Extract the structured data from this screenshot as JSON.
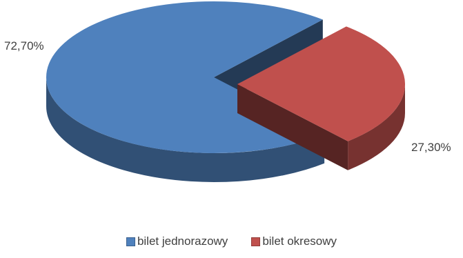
{
  "chart_data": {
    "type": "pie",
    "style": "3d-exploded",
    "categories": [
      "bilet jednorazowy",
      "bilet okresowy"
    ],
    "values": [
      72.7,
      27.3
    ],
    "value_labels": [
      "72,70%",
      "27,30%"
    ],
    "colors": [
      "#4f81bd",
      "#c0504d"
    ],
    "title": "",
    "legend_position": "bottom"
  }
}
